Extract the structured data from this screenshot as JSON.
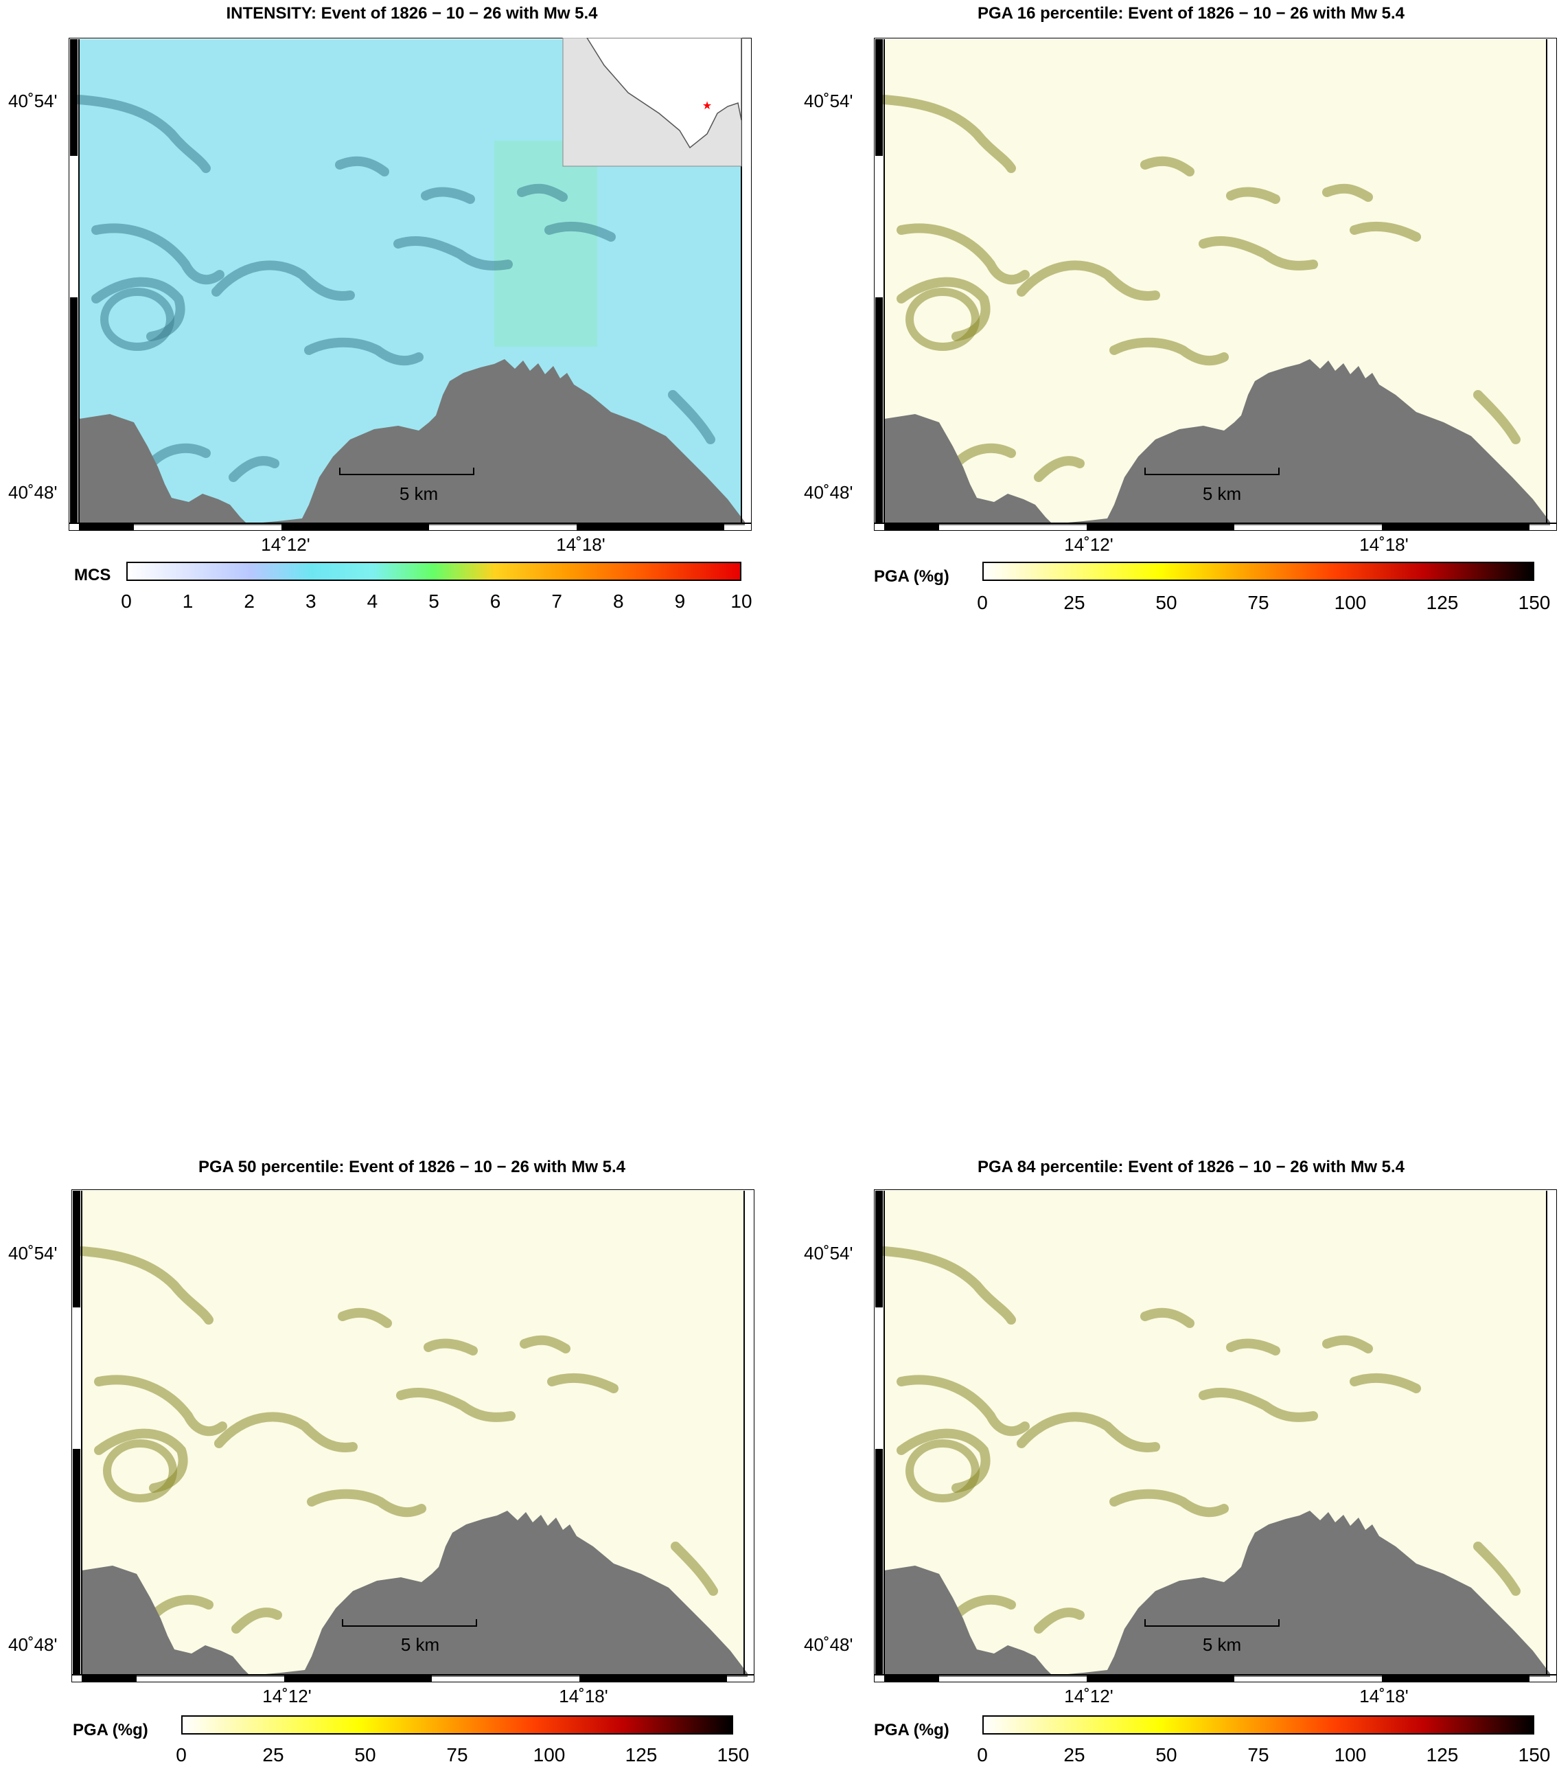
{
  "panels": [
    {
      "title": "INTENSITY: Event of 1826 − 10 − 26 with Mw 5.4",
      "colorbar_label": "MCS",
      "ticks": [
        "0",
        "1",
        "2",
        "3",
        "4",
        "5",
        "6",
        "7",
        "8",
        "9",
        "10"
      ],
      "palette": "mcs",
      "lat_labels": [
        "40˚54'",
        "40˚48'"
      ],
      "lon_labels": [
        "14˚12'",
        "14˚18'"
      ],
      "scale_label": "5 km",
      "has_inset": true
    },
    {
      "title": "PGA 16 percentile: Event of 1826 − 10 − 26 with Mw 5.4",
      "colorbar_label": "PGA (%g)",
      "ticks": [
        "0",
        "25",
        "50",
        "75",
        "100",
        "125",
        "150"
      ],
      "palette": "pga",
      "lat_labels": [
        "40˚54'",
        "40˚48'"
      ],
      "lon_labels": [
        "14˚12'",
        "14˚18'"
      ],
      "scale_label": "5 km",
      "has_inset": false
    },
    {
      "title": "PGA 50 percentile: Event of 1826 − 10 − 26 with Mw 5.4",
      "colorbar_label": "PGA (%g)",
      "ticks": [
        "0",
        "25",
        "50",
        "75",
        "100",
        "125",
        "150"
      ],
      "palette": "pga",
      "lat_labels": [
        "40˚54'",
        "40˚48'"
      ],
      "lon_labels": [
        "14˚12'",
        "14˚18'"
      ],
      "scale_label": "5 km",
      "has_inset": false
    },
    {
      "title": "PGA 84 percentile: Event of 1826 − 10 − 26 with Mw 5.4",
      "colorbar_label": "PGA (%g)",
      "ticks": [
        "0",
        "25",
        "50",
        "75",
        "100",
        "125",
        "150"
      ],
      "palette": "pga",
      "lat_labels": [
        "40˚54'",
        "40˚48'"
      ],
      "lon_labels": [
        "14˚12'",
        "14˚18'"
      ],
      "scale_label": "5 km",
      "has_inset": false
    }
  ],
  "colors": {
    "sea": "#777777",
    "mcs_field": "#9fe6f2",
    "pga_field": "#fbfbe6",
    "relief": "#8a8a2a",
    "epicenter": "#ff0000"
  },
  "icons": {
    "epicenter_marker": "red-star-icon"
  }
}
